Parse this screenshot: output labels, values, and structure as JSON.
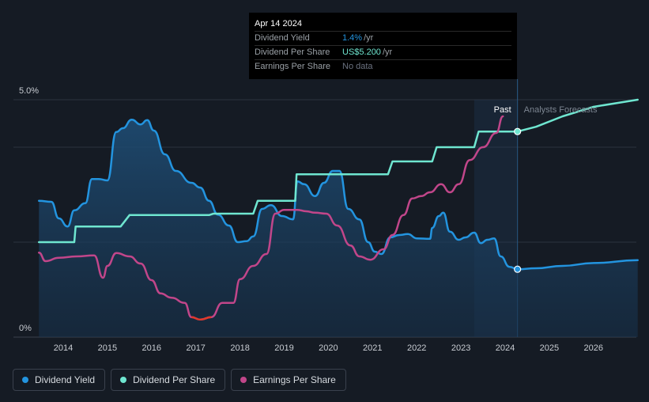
{
  "colors": {
    "dividend_yield": "#2394df",
    "dividend_per_share": "#6fe6d0",
    "earnings_per_share": "#c1468a",
    "earnings_negative": "#e0392b",
    "background": "#151b24",
    "grid": "#2c333e",
    "axis_text": "#c8ccd2"
  },
  "tooltip": {
    "date": "Apr 14 2024",
    "rows": [
      {
        "label": "Dividend Yield",
        "value": "1.4%",
        "unit": "/yr",
        "color": "#2394df"
      },
      {
        "label": "Dividend Per Share",
        "value": "US$5.200",
        "unit": "/yr",
        "color": "#6fe6d0"
      },
      {
        "label": "Earnings Per Share",
        "value": "No data",
        "unit": "",
        "color": "#6b7280"
      }
    ]
  },
  "chart_data": {
    "type": "line",
    "y_axis": {
      "top_label": "5.0%",
      "bottom_label": "0%",
      "range": [
        0,
        5.0
      ]
    },
    "x_ticks": [
      "2014",
      "2015",
      "2016",
      "2017",
      "2018",
      "2019",
      "2020",
      "2021",
      "2022",
      "2023",
      "2024",
      "2025",
      "2026"
    ],
    "x_range": [
      2013.4,
      2027.0
    ],
    "past_label": "Past",
    "forecast_label": "Analysts Forecasts",
    "forecast_start": 2024.28,
    "past_band_start": 2023.3,
    "grid": true,
    "series": [
      {
        "name": "Dividend Yield",
        "key": "dividend_yield",
        "area": true,
        "values": [
          [
            2013.45,
            2.87
          ],
          [
            2013.73,
            2.85
          ],
          [
            2013.9,
            2.5
          ],
          [
            2014.1,
            2.33
          ],
          [
            2014.25,
            2.67
          ],
          [
            2014.5,
            2.82
          ],
          [
            2014.65,
            3.33
          ],
          [
            2014.8,
            3.33
          ],
          [
            2015.0,
            3.3
          ],
          [
            2015.2,
            4.32
          ],
          [
            2015.35,
            4.4
          ],
          [
            2015.55,
            4.58
          ],
          [
            2015.75,
            4.48
          ],
          [
            2015.9,
            4.57
          ],
          [
            2016.05,
            4.35
          ],
          [
            2016.3,
            3.85
          ],
          [
            2016.55,
            3.5
          ],
          [
            2016.9,
            3.25
          ],
          [
            2017.1,
            3.15
          ],
          [
            2017.3,
            2.87
          ],
          [
            2017.5,
            2.58
          ],
          [
            2017.75,
            2.35
          ],
          [
            2017.95,
            2.0
          ],
          [
            2018.15,
            2.02
          ],
          [
            2018.3,
            2.12
          ],
          [
            2018.5,
            2.7
          ],
          [
            2018.7,
            2.78
          ],
          [
            2018.95,
            2.55
          ],
          [
            2019.2,
            2.48
          ],
          [
            2019.3,
            3.28
          ],
          [
            2019.45,
            3.22
          ],
          [
            2019.7,
            2.97
          ],
          [
            2019.9,
            3.25
          ],
          [
            2020.1,
            3.5
          ],
          [
            2020.25,
            3.5
          ],
          [
            2020.45,
            2.7
          ],
          [
            2020.7,
            2.48
          ],
          [
            2020.9,
            2.0
          ],
          [
            2021.05,
            1.8
          ],
          [
            2021.2,
            1.75
          ],
          [
            2021.4,
            2.1
          ],
          [
            2021.6,
            2.15
          ],
          [
            2021.8,
            2.17
          ],
          [
            2022.0,
            2.08
          ],
          [
            2022.3,
            2.07
          ],
          [
            2022.35,
            2.3
          ],
          [
            2022.5,
            2.55
          ],
          [
            2022.6,
            2.62
          ],
          [
            2022.75,
            2.22
          ],
          [
            2022.95,
            2.05
          ],
          [
            2023.1,
            2.1
          ],
          [
            2023.3,
            2.2
          ],
          [
            2023.45,
            1.98
          ],
          [
            2023.6,
            2.05
          ],
          [
            2023.75,
            2.08
          ],
          [
            2023.9,
            1.7
          ],
          [
            2024.1,
            1.48
          ],
          [
            2024.28,
            1.43
          ],
          [
            2024.7,
            1.45
          ],
          [
            2025.3,
            1.5
          ],
          [
            2026.0,
            1.56
          ],
          [
            2027.0,
            1.62
          ]
        ]
      },
      {
        "name": "Dividend Per Share",
        "key": "dividend_per_share",
        "area": false,
        "values": [
          [
            2013.45,
            2.0
          ],
          [
            2014.25,
            2.0
          ],
          [
            2014.28,
            2.33
          ],
          [
            2015.3,
            2.33
          ],
          [
            2015.5,
            2.57
          ],
          [
            2017.3,
            2.57
          ],
          [
            2017.4,
            2.6
          ],
          [
            2018.3,
            2.6
          ],
          [
            2018.4,
            2.87
          ],
          [
            2019.25,
            2.87
          ],
          [
            2019.28,
            3.43
          ],
          [
            2021.35,
            3.43
          ],
          [
            2021.45,
            3.7
          ],
          [
            2022.35,
            3.7
          ],
          [
            2022.45,
            4.0
          ],
          [
            2023.3,
            4.0
          ],
          [
            2023.4,
            4.33
          ],
          [
            2024.28,
            4.33
          ],
          [
            2024.7,
            4.43
          ],
          [
            2025.3,
            4.65
          ],
          [
            2026.0,
            4.85
          ],
          [
            2027.0,
            5.0
          ]
        ]
      },
      {
        "name": "Earnings Per Share",
        "key": "earnings_per_share",
        "area": false,
        "values": [
          [
            2013.45,
            1.78
          ],
          [
            2013.6,
            1.6
          ],
          [
            2013.9,
            1.67
          ],
          [
            2014.3,
            1.7
          ],
          [
            2014.7,
            1.72
          ],
          [
            2014.9,
            1.25
          ],
          [
            2015.0,
            1.5
          ],
          [
            2015.2,
            1.77
          ],
          [
            2015.5,
            1.7
          ],
          [
            2015.75,
            1.55
          ],
          [
            2016.0,
            1.2
          ],
          [
            2016.2,
            0.92
          ],
          [
            2016.45,
            0.83
          ],
          [
            2016.75,
            0.72
          ],
          [
            2016.9,
            0.42
          ],
          [
            2017.1,
            0.37
          ],
          [
            2017.35,
            0.42
          ],
          [
            2017.6,
            0.72
          ],
          [
            2017.85,
            0.72
          ],
          [
            2018.0,
            1.22
          ],
          [
            2018.3,
            1.5
          ],
          [
            2018.6,
            1.75
          ],
          [
            2018.8,
            2.6
          ],
          [
            2019.0,
            2.68
          ],
          [
            2019.3,
            2.68
          ],
          [
            2019.5,
            2.65
          ],
          [
            2019.7,
            2.62
          ],
          [
            2019.95,
            2.6
          ],
          [
            2020.2,
            2.35
          ],
          [
            2020.5,
            1.93
          ],
          [
            2020.7,
            1.7
          ],
          [
            2020.95,
            1.63
          ],
          [
            2021.25,
            1.85
          ],
          [
            2021.45,
            2.15
          ],
          [
            2021.7,
            2.57
          ],
          [
            2021.9,
            2.92
          ],
          [
            2022.1,
            2.97
          ],
          [
            2022.3,
            3.05
          ],
          [
            2022.55,
            3.22
          ],
          [
            2022.75,
            3.05
          ],
          [
            2022.95,
            3.22
          ],
          [
            2023.2,
            3.73
          ],
          [
            2023.5,
            4.0
          ],
          [
            2023.8,
            4.3
          ],
          [
            2023.95,
            4.65
          ]
        ]
      }
    ],
    "negative_segment": {
      "key": "earnings_negative",
      "x_from": 2016.85,
      "x_to": 2017.35
    }
  },
  "legend": [
    {
      "label": "Dividend Yield",
      "color": "#2394df"
    },
    {
      "label": "Dividend Per Share",
      "color": "#6fe6d0"
    },
    {
      "label": "Earnings Per Share",
      "color": "#c1468a"
    }
  ]
}
